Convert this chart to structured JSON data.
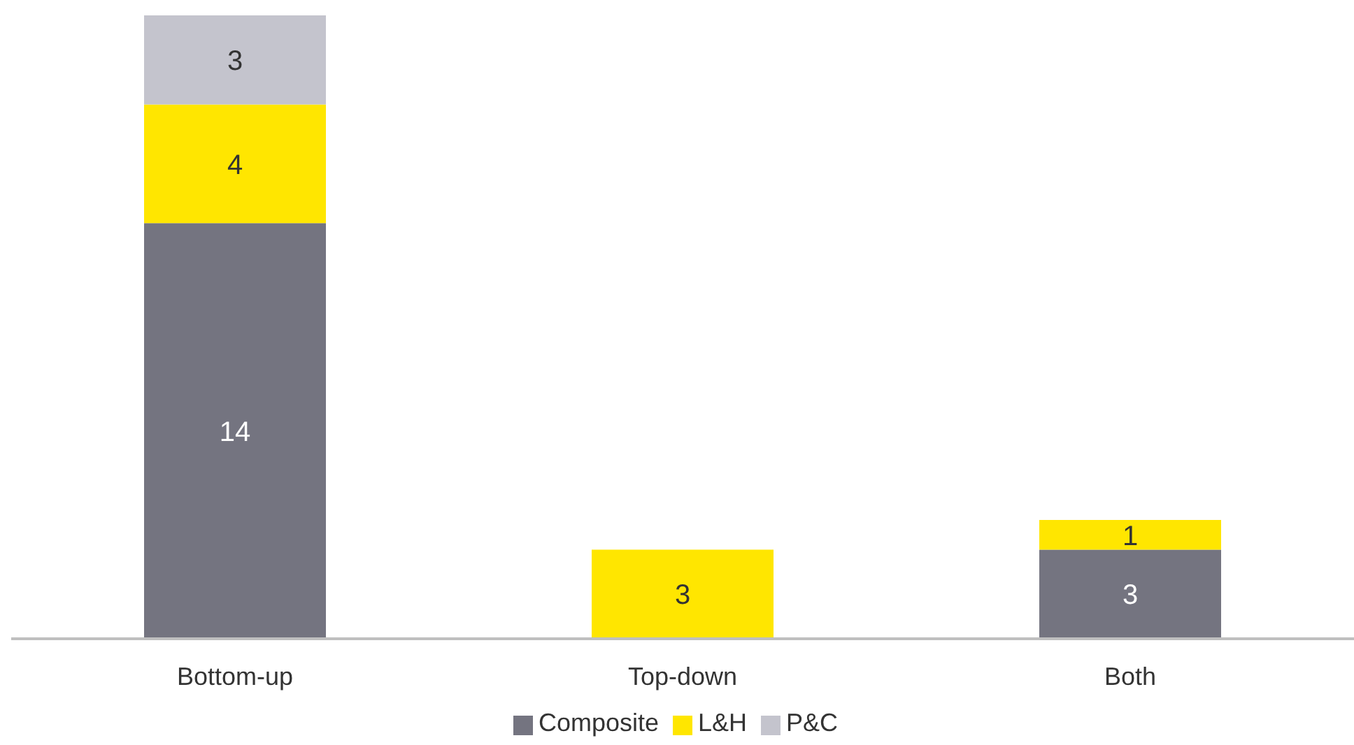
{
  "chart_data": {
    "type": "bar",
    "stacked": true,
    "categories": [
      "Bottom-up",
      "Top-down",
      "Both"
    ],
    "series": [
      {
        "name": "Composite",
        "color": "#747480",
        "values": [
          14,
          null,
          3
        ]
      },
      {
        "name": "L&H",
        "color": "#ffe600",
        "values": [
          4,
          3,
          1
        ]
      },
      {
        "name": "P&C",
        "color": "#c4c4cd",
        "values": [
          3,
          null,
          null
        ]
      }
    ],
    "data_labels": true,
    "legend": "bottom",
    "grid": false
  }
}
